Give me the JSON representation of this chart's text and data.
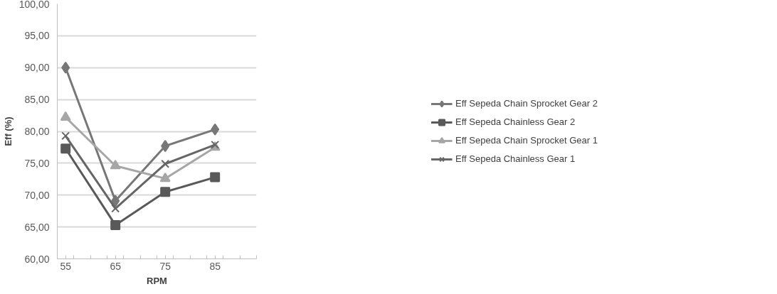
{
  "chart_data": {
    "type": "line",
    "xlabel": "RPM",
    "ylabel": "Eff (%)",
    "x": [
      55,
      65,
      75,
      85
    ],
    "xlim": [
      53.33,
      93.33
    ],
    "xticks": [
      {
        "value": 53.33,
        "label": null
      },
      {
        "value": 55,
        "label": "55"
      },
      {
        "value": 56.67,
        "label": null
      },
      {
        "value": 60,
        "label": null
      },
      {
        "value": 63.33,
        "label": null
      },
      {
        "value": 65,
        "label": "65"
      },
      {
        "value": 66.67,
        "label": null
      },
      {
        "value": 70,
        "label": null
      },
      {
        "value": 73.33,
        "label": null
      },
      {
        "value": 75,
        "label": "75"
      },
      {
        "value": 76.67,
        "label": null
      },
      {
        "value": 80,
        "label": null
      },
      {
        "value": 83.33,
        "label": null
      },
      {
        "value": 85,
        "label": "85"
      },
      {
        "value": 86.67,
        "label": null
      },
      {
        "value": 90,
        "label": null
      },
      {
        "value": 93.33,
        "label": null
      }
    ],
    "ylim": [
      60,
      100
    ],
    "yticks": [
      {
        "value": 60,
        "label": "60,00"
      },
      {
        "value": 65,
        "label": "65,00"
      },
      {
        "value": 70,
        "label": "70,00"
      },
      {
        "value": 75,
        "label": "75,00"
      },
      {
        "value": 80,
        "label": "80,00"
      },
      {
        "value": 85,
        "label": "85,00"
      },
      {
        "value": 90,
        "label": "90,00"
      },
      {
        "value": 95,
        "label": "95,00"
      },
      {
        "value": 100,
        "label": "100,00"
      }
    ],
    "grid": "y",
    "legend": "right",
    "line_style": "solid",
    "series": [
      {
        "name": "Eff Sepeda Chain Sprocket Gear 2",
        "color": "#777777",
        "marker": "diamond",
        "values": [
          90.0,
          69.1,
          77.7,
          80.3
        ]
      },
      {
        "name": "Eff Sepeda Chainless Gear 2",
        "color": "#595959",
        "marker": "square",
        "values": [
          77.3,
          65.3,
          70.5,
          72.8
        ]
      },
      {
        "name": "Eff Sepeda Chain Sprocket Gear 1",
        "color": "#a6a6a6",
        "marker": "triangle",
        "values": [
          82.2,
          74.6,
          72.6,
          77.5
        ]
      },
      {
        "name": "Eff Sepeda Chainless Gear 1",
        "color": "#666666",
        "marker": "cross",
        "values": [
          79.3,
          67.9,
          74.9,
          77.9
        ]
      }
    ]
  }
}
